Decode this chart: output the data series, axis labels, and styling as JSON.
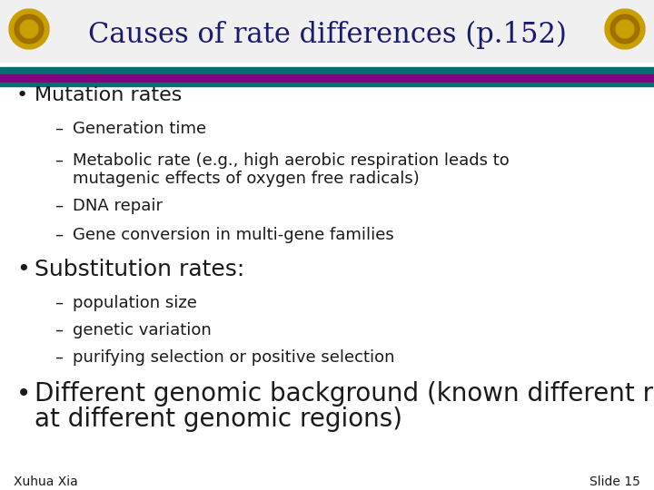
{
  "title": "Causes of rate differences (p.152)",
  "title_color": "#1a1a6e",
  "background_color": "#ffffff",
  "bullet1": "Mutation rates",
  "sub1_line1": "Generation time",
  "sub1_line2a": "Metabolic rate (e.g., high aerobic respiration leads to",
  "sub1_line2b": "mutagenic effects of oxygen free radicals)",
  "sub1_line3": "DNA repair",
  "sub1_line4": "Gene conversion in multi-gene families",
  "bullet2": "Substitution rates:",
  "sub2_line1": "population size",
  "sub2_line2": "genetic variation",
  "sub2_line3": "purifying selection or positive selection",
  "bullet3a": "Different genomic background (known different rates",
  "bullet3b": "at different genomic regions)",
  "footer_left": "Xuhua Xia",
  "footer_right": "Slide 15",
  "text_color": "#1a1a1a",
  "dark_navy": "#1a1a6e",
  "teal": "#007070",
  "purple": "#800080",
  "gold": "#c8a000"
}
